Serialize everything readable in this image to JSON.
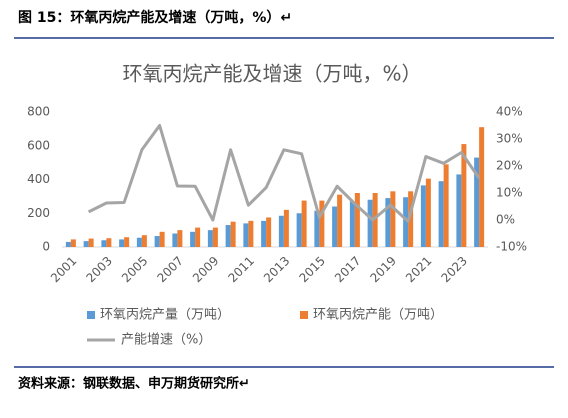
{
  "figure_title": "图 15：环氧丙烷产能及增速（万吨，%）↵",
  "source": "资料来源：钢联数据、申万期货研究所↵",
  "chart_data": {
    "type": "bar_line",
    "title": "环氧丙烷产能及增速（万吨，%）",
    "categories": [
      "2001",
      null,
      "2003",
      null,
      "2005",
      null,
      "2007",
      null,
      "2009",
      null,
      "2011",
      null,
      "2013",
      null,
      "2015",
      null,
      "2017",
      null,
      "2019",
      null,
      "2021",
      null,
      "2023",
      null
    ],
    "series": [
      {
        "name": "环氧丙烷产量（万吨）",
        "type": "bar",
        "color": "#5b9bd5",
        "values": [
          30,
          35,
          40,
          45,
          55,
          65,
          80,
          90,
          100,
          130,
          140,
          155,
          185,
          200,
          215,
          240,
          270,
          280,
          290,
          295,
          365,
          390,
          430,
          530
        ]
      },
      {
        "name": "环氧丙烷产能（万吨）",
        "type": "bar",
        "color": "#ed7d31",
        "values": [
          45,
          50,
          52,
          58,
          70,
          90,
          100,
          115,
          115,
          150,
          155,
          175,
          220,
          275,
          275,
          310,
          320,
          320,
          330,
          330,
          405,
          490,
          610,
          710
        ]
      },
      {
        "name": "产能增速（%）",
        "type": "line",
        "axis": "y2",
        "color": "#a5a5a5",
        "values": [
          null,
          3,
          6.3,
          6.5,
          26,
          35,
          12.6,
          12.5,
          0,
          26,
          5.5,
          12,
          26,
          24.5,
          1,
          12.5,
          6,
          0,
          5.5,
          -0.5,
          23.5,
          21,
          25,
          15.5
        ]
      }
    ],
    "ylim": [
      0,
      800
    ],
    "yticks": [
      0,
      200,
      400,
      600,
      800
    ],
    "y2lim": [
      -10,
      40
    ],
    "y2ticks": [
      {
        "value": 40,
        "label": "40%"
      },
      {
        "value": 30,
        "label": "30%"
      },
      {
        "value": 20,
        "label": "20%"
      },
      {
        "value": 10,
        "label": "10%"
      },
      {
        "value": 0,
        "label": "0%"
      },
      {
        "value": -10,
        "label": "-10%"
      }
    ],
    "grid": false
  }
}
